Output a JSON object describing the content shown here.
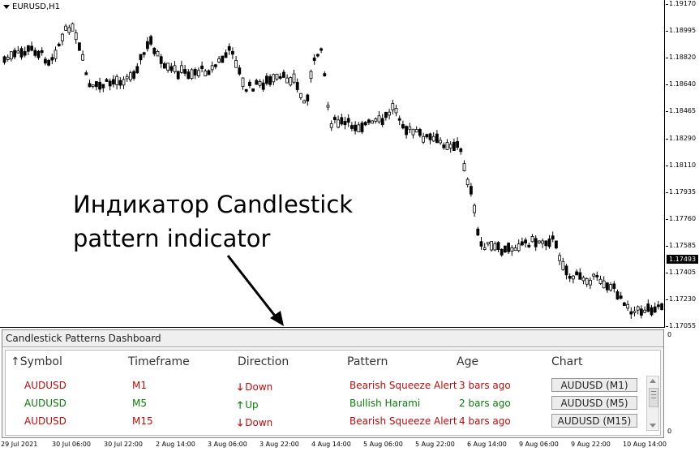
{
  "chart": {
    "symbol": "EURUSD,H1",
    "price_ticks": [
      "1.19170",
      "1.18995",
      "1.18820",
      "1.18640",
      "1.18465",
      "1.18290",
      "1.18110",
      "1.17935",
      "1.17760",
      "1.17585",
      "1.17405",
      "1.17230",
      "1.17055"
    ],
    "current_price": "1.17493",
    "time_ticks": [
      "29 Jul 2021",
      "30 Jul 06:00",
      "30 Jul 22:00",
      "2 Aug 14:00",
      "3 Aug 06:00",
      "3 Aug 22:00",
      "4 Aug 14:00",
      "5 Aug 06:00",
      "5 Aug 22:00",
      "6 Aug 14:00",
      "9 Aug 06:00",
      "9 Aug 22:00",
      "10 Aug 14:00"
    ],
    "colors": {
      "candle": "#000000",
      "background": "#ffffff"
    }
  },
  "annotation": {
    "line1": "Индикатор Candlestick",
    "line2": "pattern indicator"
  },
  "dashboard": {
    "title": "Candlestick Patterns Dashboard",
    "axis_top": "0",
    "axis_bottom": "0",
    "headers": {
      "symbol": "↑Symbol",
      "timeframe": "Timeframe",
      "direction": "Direction",
      "pattern": "Pattern",
      "age": "Age",
      "chart": "Chart"
    },
    "rows": [
      {
        "symbol": "AUDUSD",
        "timeframe": "M1",
        "dir_arrow": "🡓",
        "direction": "Down",
        "pattern": "Bearish Squeeze Alert",
        "age": "3 bars ago",
        "chart": "AUDUSD (M1)",
        "color": "red"
      },
      {
        "symbol": "AUDUSD",
        "timeframe": "M5",
        "dir_arrow": "🡑",
        "direction": "Up",
        "pattern": "Bullish Harami",
        "age": "2 bars ago",
        "chart": "AUDUSD (M5)",
        "color": "green"
      },
      {
        "symbol": "AUDUSD",
        "timeframe": "M15",
        "dir_arrow": "🡓",
        "direction": "Down",
        "pattern": "Bearish Squeeze Alert",
        "age": "4 bars ago",
        "chart": "AUDUSD (M15)",
        "color": "red"
      }
    ]
  }
}
